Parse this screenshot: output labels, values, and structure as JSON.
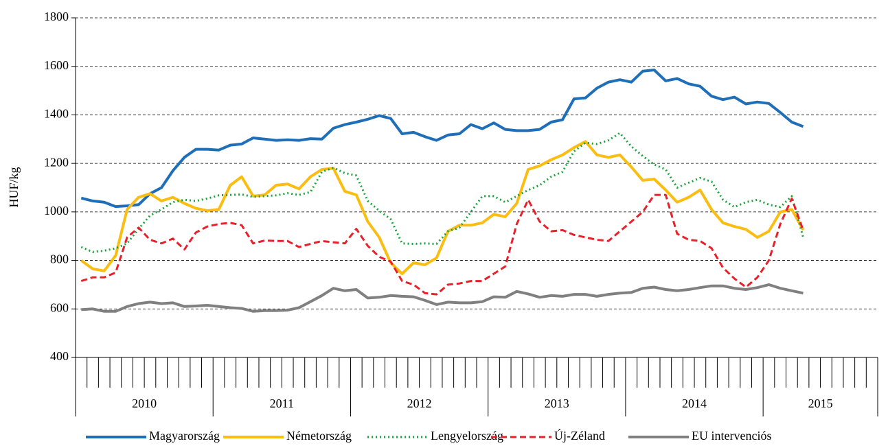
{
  "chart_data": {
    "type": "line",
    "ylabel": "HUF/kg",
    "ylim": [
      400,
      1800
    ],
    "yticks": [
      400,
      600,
      800,
      1000,
      1200,
      1400,
      1600,
      1800
    ],
    "grid": true,
    "legend": "bottom",
    "years": [
      "2010",
      "2011",
      "2012",
      "2013",
      "2014",
      "2015"
    ],
    "categories": [
      null,
      null,
      null,
      null,
      null,
      null,
      null,
      null,
      null,
      null,
      null,
      null,
      null,
      null,
      null,
      null,
      null,
      null,
      null,
      null,
      null,
      null,
      null,
      null,
      null,
      null,
      null,
      null,
      null,
      null,
      null,
      null,
      null,
      null,
      null,
      null,
      null,
      null,
      null,
      null,
      null,
      null,
      null,
      null,
      null,
      null,
      null,
      null,
      null,
      null,
      null,
      null,
      null,
      null,
      null,
      null,
      null,
      null,
      null,
      null,
      null,
      null,
      null,
      null,
      null,
      null,
      null,
      null,
      null,
      null
    ],
    "series": [
      {
        "name": "Magyarország",
        "color": "#1f6fb8",
        "dash": "solid",
        "values": [
          1057,
          1045,
          1040,
          1022,
          1025,
          1030,
          1075,
          1100,
          1170,
          1225,
          1258,
          1258,
          1255,
          1275,
          1280,
          1305,
          1300,
          1295,
          1297,
          1295,
          1302,
          1300,
          1345,
          1360,
          1370,
          1382,
          1397,
          1385,
          1322,
          1328,
          1310,
          1295,
          1317,
          1322,
          1360,
          1343,
          1367,
          1340,
          1335,
          1335,
          1340,
          1370,
          1380,
          1466,
          1470,
          1510,
          1535,
          1545,
          1535,
          1580,
          1585,
          1540,
          1550,
          1528,
          1518,
          1477,
          1463,
          1473,
          1445,
          1453,
          1447,
          1410,
          1370,
          1352,
          null,
          null,
          null,
          null,
          null,
          null
        ]
      },
      {
        "name": "Németország",
        "color": "#fbbd12",
        "dash": "solid",
        "values": [
          800,
          765,
          757,
          820,
          1010,
          1060,
          1075,
          1045,
          1060,
          1035,
          1015,
          1005,
          1010,
          1110,
          1145,
          1065,
          1070,
          1110,
          1115,
          1095,
          1145,
          1175,
          1180,
          1085,
          1070,
          960,
          895,
          790,
          745,
          790,
          782,
          810,
          920,
          945,
          945,
          955,
          990,
          980,
          1035,
          1175,
          1190,
          1215,
          1235,
          1265,
          1290,
          1235,
          1225,
          1235,
          1185,
          1130,
          1135,
          1090,
          1040,
          1060,
          1090,
          1010,
          955,
          940,
          928,
          895,
          920,
          1000,
          1010,
          925,
          null,
          null,
          null,
          null,
          null,
          null
        ]
      },
      {
        "name": "Lengyelország",
        "color": "#1aa33a",
        "dash": "dotted",
        "values": [
          855,
          835,
          840,
          850,
          870,
          930,
          985,
          1010,
          1040,
          1050,
          1045,
          1055,
          1068,
          1070,
          1072,
          1062,
          1065,
          1068,
          1077,
          1070,
          1082,
          1165,
          1182,
          1160,
          1150,
          1045,
          1005,
          970,
          870,
          868,
          870,
          868,
          920,
          935,
          1000,
          1065,
          1065,
          1040,
          1065,
          1090,
          1110,
          1145,
          1165,
          1250,
          1285,
          1280,
          1295,
          1325,
          1270,
          1230,
          1195,
          1175,
          1100,
          1120,
          1140,
          1125,
          1050,
          1020,
          1040,
          1050,
          1030,
          1020,
          1065,
          895,
          null,
          null,
          null,
          null,
          null,
          null
        ]
      },
      {
        "name": "Új-Zéland",
        "color": "#e8202a",
        "dash": "dashed",
        "values": [
          715,
          730,
          730,
          750,
          895,
          935,
          885,
          870,
          890,
          845,
          915,
          940,
          950,
          955,
          945,
          870,
          882,
          880,
          880,
          855,
          868,
          880,
          875,
          870,
          930,
          860,
          815,
          795,
          715,
          700,
          665,
          660,
          700,
          705,
          715,
          715,
          745,
          775,
          950,
          1050,
          960,
          920,
          925,
          905,
          895,
          885,
          880,
          920,
          960,
          1000,
          1070,
          1070,
          910,
          885,
          880,
          850,
          770,
          725,
          690,
          730,
          800,
          950,
          1055,
          925,
          null,
          null,
          null,
          null,
          null,
          null
        ]
      },
      {
        "name": "EU intervenciós",
        "color": "#808080",
        "dash": "solid",
        "values": [
          597,
          600,
          590,
          590,
          610,
          622,
          628,
          622,
          625,
          610,
          612,
          615,
          610,
          605,
          602,
          590,
          593,
          593,
          595,
          605,
          630,
          655,
          685,
          675,
          680,
          645,
          648,
          655,
          652,
          650,
          635,
          618,
          628,
          625,
          625,
          630,
          650,
          648,
          672,
          662,
          648,
          655,
          652,
          660,
          660,
          652,
          660,
          665,
          668,
          685,
          690,
          680,
          675,
          680,
          688,
          695,
          695,
          685,
          680,
          688,
          700,
          685,
          675,
          665,
          null,
          null,
          null,
          null,
          null,
          null
        ]
      }
    ]
  }
}
